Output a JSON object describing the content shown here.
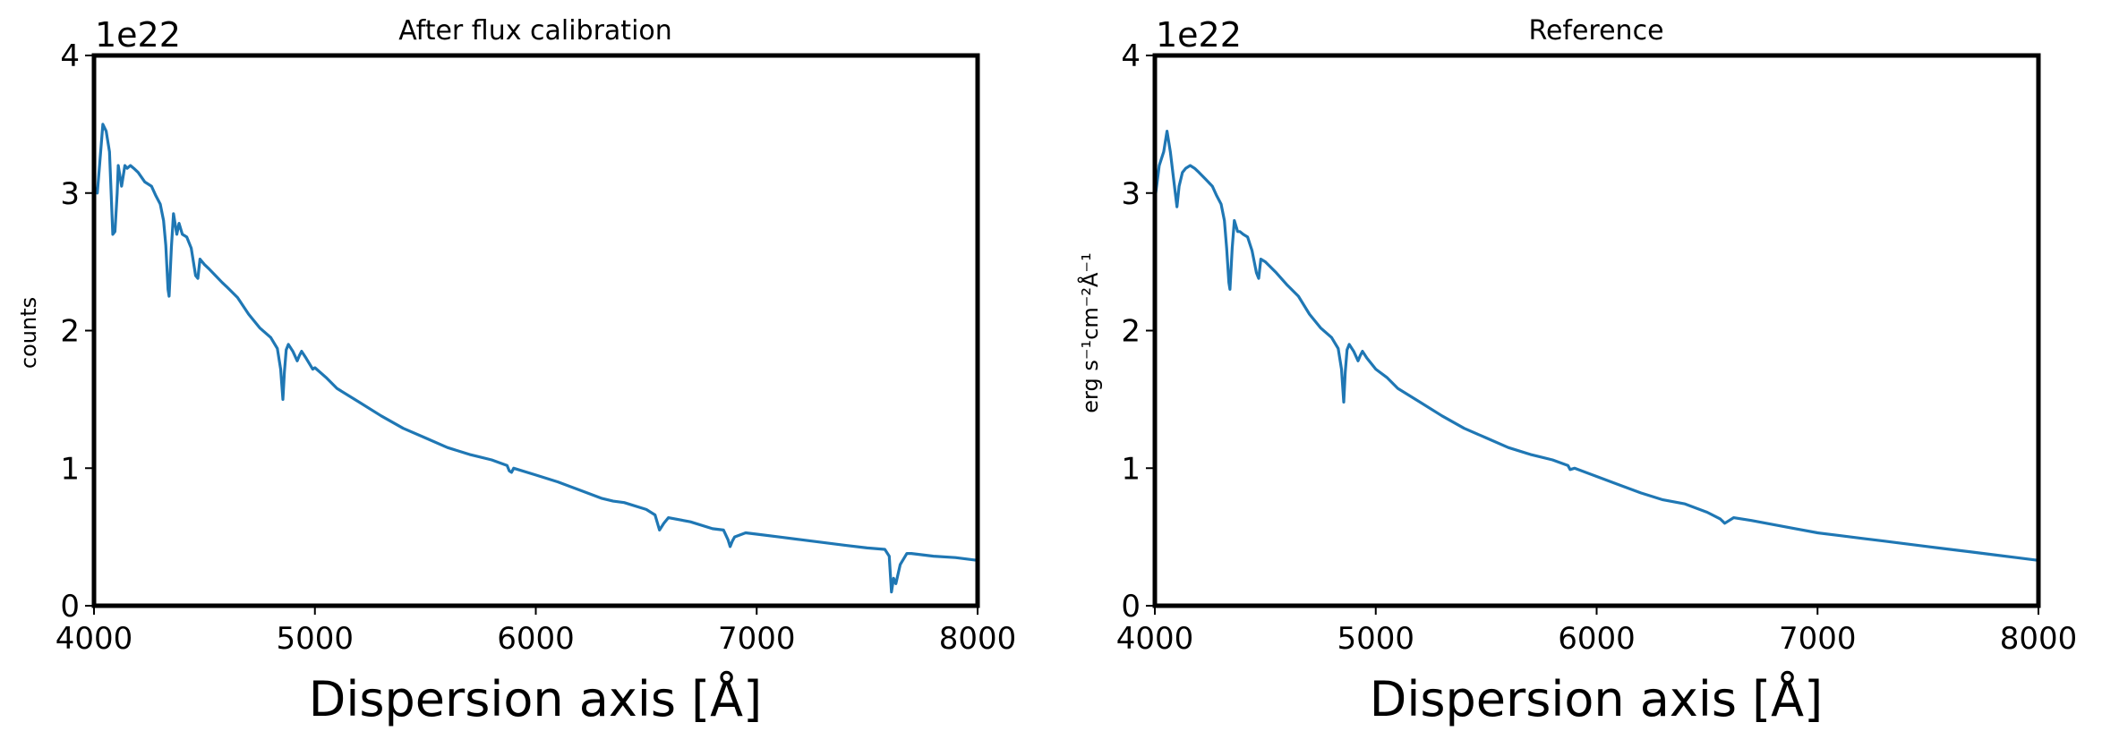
{
  "chart_data": [
    {
      "type": "line",
      "title": "After flux calibration",
      "xlabel": "Dispersion axis [Å]",
      "ylabel": "counts",
      "offset_text": "1e22",
      "xlim": [
        4000,
        8000
      ],
      "ylim": [
        0,
        4
      ],
      "x_ticks": [
        "4000",
        "5000",
        "6000",
        "7000",
        "8000"
      ],
      "y_ticks": [
        "0",
        "1",
        "2",
        "3",
        "4"
      ],
      "grid": false,
      "line_color": "#1f77b4",
      "series": [
        {
          "x": [
            4000,
            4015,
            4025,
            4040,
            4055,
            4070,
            4085,
            4095,
            4105,
            4110,
            4125,
            4140,
            4150,
            4165,
            4180,
            4200,
            4230,
            4260,
            4280,
            4300,
            4315,
            4325,
            4335,
            4340,
            4350,
            4360,
            4375,
            4385,
            4400,
            4420,
            4440,
            4460,
            4470,
            4480,
            4500,
            4520,
            4550,
            4580,
            4600,
            4650,
            4700,
            4750,
            4800,
            4830,
            4845,
            4855,
            4862,
            4870,
            4880,
            4900,
            4920,
            4930,
            4940,
            4960,
            4990,
            5000,
            5050,
            5100,
            5200,
            5300,
            5400,
            5500,
            5600,
            5700,
            5800,
            5870,
            5880,
            5890,
            5900,
            6000,
            6100,
            6200,
            6300,
            6350,
            6400,
            6500,
            6540,
            6560,
            6580,
            6600,
            6700,
            6800,
            6850,
            6870,
            6880,
            6890,
            6900,
            6950,
            7000,
            7100,
            7200,
            7300,
            7400,
            7500,
            7580,
            7600,
            7610,
            7620,
            7630,
            7650,
            7680,
            7700,
            7800,
            7900,
            8000
          ],
          "y": [
            3.05,
            3.0,
            3.2,
            3.5,
            3.45,
            3.3,
            2.7,
            2.72,
            3.0,
            3.2,
            3.05,
            3.2,
            3.18,
            3.2,
            3.18,
            3.15,
            3.08,
            3.05,
            2.98,
            2.92,
            2.8,
            2.62,
            2.3,
            2.25,
            2.6,
            2.85,
            2.7,
            2.78,
            2.7,
            2.68,
            2.6,
            2.4,
            2.38,
            2.52,
            2.48,
            2.45,
            2.4,
            2.35,
            2.32,
            2.24,
            2.12,
            2.02,
            1.95,
            1.87,
            1.72,
            1.5,
            1.7,
            1.86,
            1.9,
            1.85,
            1.78,
            1.82,
            1.85,
            1.8,
            1.72,
            1.73,
            1.66,
            1.58,
            1.48,
            1.38,
            1.29,
            1.22,
            1.15,
            1.1,
            1.06,
            1.02,
            0.98,
            0.97,
            1.0,
            0.95,
            0.9,
            0.84,
            0.78,
            0.76,
            0.75,
            0.7,
            0.66,
            0.55,
            0.6,
            0.64,
            0.61,
            0.56,
            0.55,
            0.48,
            0.43,
            0.47,
            0.5,
            0.53,
            0.52,
            0.5,
            0.48,
            0.46,
            0.44,
            0.42,
            0.41,
            0.36,
            0.1,
            0.2,
            0.16,
            0.3,
            0.38,
            0.38,
            0.36,
            0.35,
            0.33
          ]
        }
      ]
    },
    {
      "type": "line",
      "title": "Reference",
      "xlabel": "Dispersion axis [Å]",
      "ylabel": "erg s⁻¹cm⁻²Å⁻¹",
      "offset_text": "1e22",
      "xlim": [
        4000,
        8000
      ],
      "ylim": [
        0,
        4
      ],
      "x_ticks": [
        "4000",
        "5000",
        "6000",
        "7000",
        "8000"
      ],
      "y_ticks": [
        "0",
        "1",
        "2",
        "3",
        "4"
      ],
      "grid": false,
      "line_color": "#1f77b4",
      "series": [
        {
          "x": [
            4000,
            4020,
            4040,
            4055,
            4070,
            4085,
            4100,
            4110,
            4125,
            4140,
            4160,
            4180,
            4200,
            4230,
            4260,
            4280,
            4300,
            4315,
            4325,
            4335,
            4340,
            4350,
            4360,
            4375,
            4385,
            4400,
            4420,
            4440,
            4460,
            4470,
            4480,
            4500,
            4550,
            4600,
            4650,
            4700,
            4750,
            4800,
            4830,
            4845,
            4855,
            4862,
            4870,
            4880,
            4900,
            4920,
            4930,
            4940,
            4960,
            5000,
            5050,
            5100,
            5200,
            5300,
            5400,
            5500,
            5600,
            5700,
            5800,
            5870,
            5880,
            5900,
            6000,
            6100,
            6200,
            6300,
            6400,
            6500,
            6560,
            6580,
            6600,
            6620,
            6700,
            6800,
            6900,
            7000,
            7100,
            7200,
            7300,
            7400,
            7500,
            7600,
            7700,
            7800,
            7900,
            8000
          ],
          "y": [
            2.95,
            3.2,
            3.3,
            3.45,
            3.3,
            3.1,
            2.9,
            3.05,
            3.15,
            3.18,
            3.2,
            3.18,
            3.15,
            3.1,
            3.05,
            2.98,
            2.92,
            2.8,
            2.6,
            2.35,
            2.3,
            2.6,
            2.8,
            2.72,
            2.72,
            2.7,
            2.68,
            2.58,
            2.42,
            2.38,
            2.52,
            2.5,
            2.42,
            2.33,
            2.25,
            2.12,
            2.02,
            1.95,
            1.87,
            1.72,
            1.48,
            1.7,
            1.86,
            1.9,
            1.85,
            1.78,
            1.82,
            1.85,
            1.8,
            1.72,
            1.66,
            1.58,
            1.48,
            1.38,
            1.29,
            1.22,
            1.15,
            1.1,
            1.06,
            1.02,
            0.99,
            1.0,
            0.94,
            0.88,
            0.82,
            0.77,
            0.74,
            0.68,
            0.63,
            0.6,
            0.62,
            0.64,
            0.62,
            0.59,
            0.56,
            0.53,
            0.51,
            0.49,
            0.47,
            0.45,
            0.43,
            0.41,
            0.39,
            0.37,
            0.35,
            0.33
          ]
        }
      ]
    }
  ]
}
